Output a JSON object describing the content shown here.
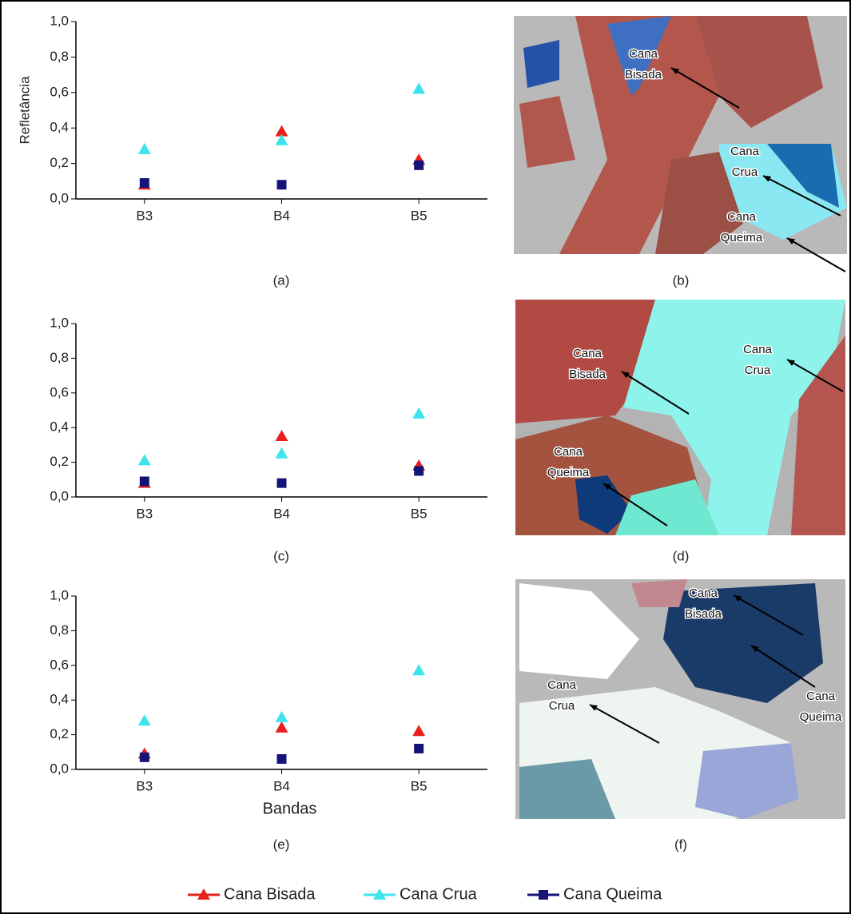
{
  "chart_data": [
    {
      "type": "scatter",
      "caption": "(a)",
      "ylabel": "Refletância",
      "categories": [
        "B3",
        "B4",
        "B5"
      ],
      "ylim": [
        0,
        1
      ],
      "yticks": [
        {
          "value": 0,
          "label": "0,0"
        },
        {
          "value": 0.2,
          "label": "0,2"
        },
        {
          "value": 0.4,
          "label": "0,4"
        },
        {
          "value": 0.6,
          "label": "0,6"
        },
        {
          "value": 0.8,
          "label": "0,8"
        },
        {
          "value": 1,
          "label": "1,0"
        }
      ],
      "series": [
        {
          "name": "Cana Bisada",
          "color": "#e8201c",
          "marker": "triangle",
          "values": [
            0.08,
            0.38,
            0.22
          ]
        },
        {
          "name": "Cana Crua",
          "color": "#3ee4ec",
          "marker": "triangle",
          "values": [
            0.28,
            0.33,
            0.62
          ]
        },
        {
          "name": "Cana Queima",
          "color": "#141478",
          "marker": "square",
          "values": [
            0.09,
            0.08,
            0.19
          ]
        }
      ]
    },
    {
      "type": "scatter",
      "caption": "(c)",
      "categories": [
        "B3",
        "B4",
        "B5"
      ],
      "ylim": [
        0,
        1
      ],
      "yticks": [
        {
          "value": 0,
          "label": "0,0"
        },
        {
          "value": 0.2,
          "label": "0,2"
        },
        {
          "value": 0.4,
          "label": "0,4"
        },
        {
          "value": 0.6,
          "label": "0,6"
        },
        {
          "value": 0.8,
          "label": "0,8"
        },
        {
          "value": 1,
          "label": "1,0"
        }
      ],
      "series": [
        {
          "name": "Cana Bisada",
          "color": "#e8201c",
          "marker": "triangle",
          "values": [
            0.08,
            0.35,
            0.18
          ]
        },
        {
          "name": "Cana Crua",
          "color": "#3ee4ec",
          "marker": "triangle",
          "values": [
            0.21,
            0.25,
            0.48
          ]
        },
        {
          "name": "Cana Queima",
          "color": "#141478",
          "marker": "square",
          "values": [
            0.09,
            0.08,
            0.15
          ]
        }
      ]
    },
    {
      "type": "scatter",
      "caption": "(e)",
      "xlabel": "Bandas",
      "categories": [
        "B3",
        "B4",
        "B5"
      ],
      "ylim": [
        0,
        1
      ],
      "yticks": [
        {
          "value": 0,
          "label": "0,0"
        },
        {
          "value": 0.2,
          "label": "0,2"
        },
        {
          "value": 0.4,
          "label": "0,4"
        },
        {
          "value": 0.6,
          "label": "0,6"
        },
        {
          "value": 0.8,
          "label": "0,8"
        },
        {
          "value": 1,
          "label": "1,0"
        }
      ],
      "series": [
        {
          "name": "Cana Bisada",
          "color": "#e8201c",
          "marker": "triangle",
          "values": [
            0.09,
            0.24,
            0.22
          ]
        },
        {
          "name": "Cana Crua",
          "color": "#3ee4ec",
          "marker": "triangle",
          "values": [
            0.28,
            0.3,
            0.57
          ]
        },
        {
          "name": "Cana Queima",
          "color": "#141478",
          "marker": "square",
          "values": [
            0.07,
            0.06,
            0.12
          ]
        }
      ]
    }
  ],
  "images": [
    {
      "caption": "(b)",
      "labels": [
        {
          "lines": [
            "Cana",
            "Bisada"
          ]
        },
        {
          "lines": [
            "Cana",
            "Crua"
          ]
        },
        {
          "lines": [
            "Cana",
            "Queima"
          ]
        }
      ]
    },
    {
      "caption": "(d)",
      "labels": [
        {
          "lines": [
            "Cana",
            "Bisada"
          ]
        },
        {
          "lines": [
            "Cana",
            "Crua"
          ]
        },
        {
          "lines": [
            "Cana",
            "Queima"
          ]
        }
      ]
    },
    {
      "caption": "(f)",
      "labels": [
        {
          "lines": [
            "Cana",
            "Bisada"
          ]
        },
        {
          "lines": [
            "Cana",
            "Queima"
          ]
        },
        {
          "lines": [
            "Cana",
            "Crua"
          ]
        }
      ]
    }
  ]
}
